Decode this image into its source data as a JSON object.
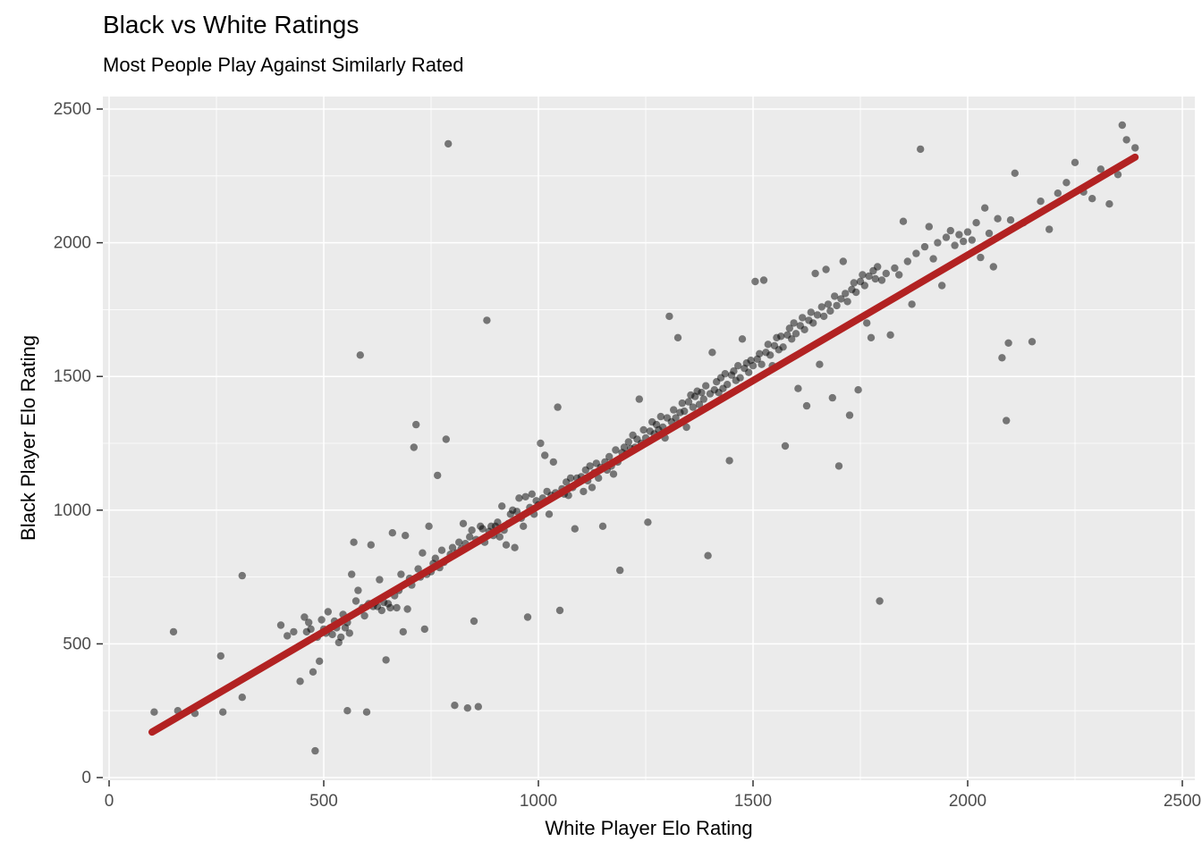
{
  "chart_data": {
    "type": "scatter",
    "title": "Black vs White Ratings",
    "subtitle": "Most People Play Against Similarly Rated",
    "xlabel": "White Player Elo Rating",
    "ylabel": "Black Player Elo Rating",
    "xlim": [
      0,
      2500
    ],
    "ylim": [
      0,
      2500
    ],
    "x_ticks": [
      0,
      500,
      1000,
      1500,
      2000,
      2500
    ],
    "y_ticks": [
      0,
      500,
      1000,
      1500,
      2000,
      2500
    ],
    "minor_gridlines": [
      250,
      750,
      1250,
      1750,
      2250
    ],
    "grid": true,
    "legend_position": "none",
    "style": {
      "panel_bg": "#EBEBEB",
      "grid_color": "#FFFFFF",
      "tick_label_color": "#4D4D4D",
      "axis_tick_color": "#333333",
      "point_color": "#000000",
      "point_opacity": 0.5,
      "point_radius": 4.2,
      "trend_color": "#B22222",
      "trend_width": 8
    },
    "trend_line": {
      "type": "linear_fit",
      "x1": 100,
      "y1": 170,
      "x2": 2390,
      "y2": 2320
    },
    "points": [
      [
        105,
        245
      ],
      [
        160,
        250
      ],
      [
        200,
        240
      ],
      [
        265,
        245
      ],
      [
        150,
        545
      ],
      [
        260,
        455
      ],
      [
        310,
        300
      ],
      [
        310,
        755
      ],
      [
        400,
        570
      ],
      [
        415,
        530
      ],
      [
        430,
        545
      ],
      [
        445,
        360
      ],
      [
        455,
        600
      ],
      [
        460,
        545
      ],
      [
        465,
        580
      ],
      [
        470,
        555
      ],
      [
        475,
        395
      ],
      [
        480,
        100
      ],
      [
        485,
        525
      ],
      [
        490,
        435
      ],
      [
        495,
        590
      ],
      [
        500,
        555
      ],
      [
        505,
        540
      ],
      [
        510,
        620
      ],
      [
        515,
        560
      ],
      [
        520,
        535
      ],
      [
        525,
        585
      ],
      [
        530,
        560
      ],
      [
        535,
        505
      ],
      [
        540,
        525
      ],
      [
        545,
        610
      ],
      [
        550,
        560
      ],
      [
        555,
        580
      ],
      [
        555,
        250
      ],
      [
        560,
        540
      ],
      [
        565,
        760
      ],
      [
        570,
        880
      ],
      [
        575,
        660
      ],
      [
        580,
        700
      ],
      [
        585,
        1580
      ],
      [
        590,
        635
      ],
      [
        595,
        605
      ],
      [
        600,
        640
      ],
      [
        600,
        245
      ],
      [
        605,
        650
      ],
      [
        610,
        870
      ],
      [
        615,
        640
      ],
      [
        620,
        655
      ],
      [
        625,
        640
      ],
      [
        630,
        740
      ],
      [
        635,
        625
      ],
      [
        640,
        655
      ],
      [
        645,
        440
      ],
      [
        650,
        650
      ],
      [
        655,
        635
      ],
      [
        660,
        915
      ],
      [
        665,
        680
      ],
      [
        670,
        635
      ],
      [
        675,
        700
      ],
      [
        680,
        760
      ],
      [
        685,
        545
      ],
      [
        690,
        905
      ],
      [
        695,
        630
      ],
      [
        700,
        745
      ],
      [
        705,
        720
      ],
      [
        710,
        1235
      ],
      [
        715,
        1320
      ],
      [
        720,
        780
      ],
      [
        725,
        750
      ],
      [
        730,
        840
      ],
      [
        735,
        555
      ],
      [
        740,
        760
      ],
      [
        745,
        940
      ],
      [
        750,
        770
      ],
      [
        755,
        800
      ],
      [
        760,
        820
      ],
      [
        765,
        1130
      ],
      [
        770,
        785
      ],
      [
        775,
        850
      ],
      [
        780,
        805
      ],
      [
        785,
        1265
      ],
      [
        790,
        2370
      ],
      [
        795,
        835
      ],
      [
        800,
        860
      ],
      [
        805,
        270
      ],
      [
        810,
        840
      ],
      [
        815,
        880
      ],
      [
        820,
        855
      ],
      [
        825,
        950
      ],
      [
        830,
        875
      ],
      [
        835,
        260
      ],
      [
        840,
        900
      ],
      [
        845,
        925
      ],
      [
        850,
        585
      ],
      [
        855,
        890
      ],
      [
        860,
        265
      ],
      [
        865,
        940
      ],
      [
        870,
        930
      ],
      [
        875,
        880
      ],
      [
        880,
        1710
      ],
      [
        885,
        920
      ],
      [
        890,
        940
      ],
      [
        895,
        905
      ],
      [
        900,
        940
      ],
      [
        905,
        955
      ],
      [
        910,
        900
      ],
      [
        915,
        1015
      ],
      [
        920,
        925
      ],
      [
        925,
        870
      ],
      [
        930,
        950
      ],
      [
        935,
        985
      ],
      [
        940,
        1000
      ],
      [
        945,
        860
      ],
      [
        950,
        995
      ],
      [
        955,
        1045
      ],
      [
        960,
        970
      ],
      [
        965,
        940
      ],
      [
        970,
        1050
      ],
      [
        975,
        600
      ],
      [
        980,
        1010
      ],
      [
        985,
        1060
      ],
      [
        990,
        985
      ],
      [
        995,
        1035
      ],
      [
        1000,
        1020
      ],
      [
        1005,
        1250
      ],
      [
        1010,
        1045
      ],
      [
        1015,
        1205
      ],
      [
        1020,
        1070
      ],
      [
        1025,
        985
      ],
      [
        1030,
        1055
      ],
      [
        1035,
        1180
      ],
      [
        1040,
        1065
      ],
      [
        1045,
        1385
      ],
      [
        1050,
        625
      ],
      [
        1055,
        1080
      ],
      [
        1060,
        1060
      ],
      [
        1065,
        1105
      ],
      [
        1070,
        1055
      ],
      [
        1075,
        1120
      ],
      [
        1080,
        1085
      ],
      [
        1085,
        930
      ],
      [
        1090,
        1120
      ],
      [
        1095,
        1105
      ],
      [
        1100,
        1125
      ],
      [
        1105,
        1070
      ],
      [
        1110,
        1150
      ],
      [
        1115,
        1110
      ],
      [
        1120,
        1165
      ],
      [
        1125,
        1085
      ],
      [
        1130,
        1140
      ],
      [
        1135,
        1175
      ],
      [
        1140,
        1120
      ],
      [
        1145,
        1160
      ],
      [
        1150,
        940
      ],
      [
        1155,
        1180
      ],
      [
        1160,
        1150
      ],
      [
        1165,
        1200
      ],
      [
        1170,
        1165
      ],
      [
        1175,
        1135
      ],
      [
        1180,
        1225
      ],
      [
        1185,
        1180
      ],
      [
        1190,
        775
      ],
      [
        1195,
        1215
      ],
      [
        1200,
        1235
      ],
      [
        1205,
        1210
      ],
      [
        1210,
        1255
      ],
      [
        1215,
        1230
      ],
      [
        1220,
        1280
      ],
      [
        1225,
        1235
      ],
      [
        1230,
        1265
      ],
      [
        1235,
        1415
      ],
      [
        1240,
        1250
      ],
      [
        1245,
        1300
      ],
      [
        1250,
        1270
      ],
      [
        1255,
        955
      ],
      [
        1260,
        1295
      ],
      [
        1265,
        1330
      ],
      [
        1270,
        1285
      ],
      [
        1275,
        1320
      ],
      [
        1280,
        1300
      ],
      [
        1285,
        1350
      ],
      [
        1290,
        1310
      ],
      [
        1295,
        1270
      ],
      [
        1300,
        1345
      ],
      [
        1305,
        1725
      ],
      [
        1310,
        1330
      ],
      [
        1315,
        1375
      ],
      [
        1320,
        1345
      ],
      [
        1325,
        1645
      ],
      [
        1330,
        1365
      ],
      [
        1335,
        1400
      ],
      [
        1340,
        1370
      ],
      [
        1345,
        1310
      ],
      [
        1350,
        1405
      ],
      [
        1355,
        1430
      ],
      [
        1360,
        1385
      ],
      [
        1365,
        1425
      ],
      [
        1370,
        1445
      ],
      [
        1375,
        1395
      ],
      [
        1380,
        1440
      ],
      [
        1385,
        1415
      ],
      [
        1390,
        1465
      ],
      [
        1395,
        830
      ],
      [
        1400,
        1435
      ],
      [
        1405,
        1590
      ],
      [
        1410,
        1450
      ],
      [
        1415,
        1480
      ],
      [
        1420,
        1440
      ],
      [
        1425,
        1495
      ],
      [
        1430,
        1455
      ],
      [
        1435,
        1510
      ],
      [
        1440,
        1470
      ],
      [
        1445,
        1185
      ],
      [
        1450,
        1505
      ],
      [
        1455,
        1520
      ],
      [
        1460,
        1485
      ],
      [
        1465,
        1540
      ],
      [
        1470,
        1495
      ],
      [
        1475,
        1640
      ],
      [
        1480,
        1530
      ],
      [
        1485,
        1550
      ],
      [
        1490,
        1515
      ],
      [
        1495,
        1560
      ],
      [
        1500,
        1540
      ],
      [
        1505,
        1855
      ],
      [
        1510,
        1565
      ],
      [
        1515,
        1585
      ],
      [
        1520,
        1545
      ],
      [
        1525,
        1860
      ],
      [
        1530,
        1590
      ],
      [
        1535,
        1620
      ],
      [
        1540,
        1580
      ],
      [
        1545,
        1540
      ],
      [
        1550,
        1615
      ],
      [
        1555,
        1645
      ],
      [
        1560,
        1600
      ],
      [
        1565,
        1650
      ],
      [
        1570,
        1610
      ],
      [
        1575,
        1240
      ],
      [
        1580,
        1655
      ],
      [
        1585,
        1680
      ],
      [
        1590,
        1640
      ],
      [
        1595,
        1700
      ],
      [
        1600,
        1660
      ],
      [
        1605,
        1455
      ],
      [
        1610,
        1690
      ],
      [
        1615,
        1720
      ],
      [
        1620,
        1675
      ],
      [
        1625,
        1390
      ],
      [
        1630,
        1710
      ],
      [
        1635,
        1740
      ],
      [
        1640,
        1700
      ],
      [
        1645,
        1885
      ],
      [
        1650,
        1730
      ],
      [
        1655,
        1545
      ],
      [
        1660,
        1760
      ],
      [
        1665,
        1725
      ],
      [
        1670,
        1900
      ],
      [
        1675,
        1770
      ],
      [
        1680,
        1745
      ],
      [
        1685,
        1420
      ],
      [
        1690,
        1800
      ],
      [
        1695,
        1765
      ],
      [
        1700,
        1165
      ],
      [
        1705,
        1790
      ],
      [
        1710,
        1930
      ],
      [
        1715,
        1810
      ],
      [
        1720,
        1780
      ],
      [
        1725,
        1355
      ],
      [
        1730,
        1825
      ],
      [
        1735,
        1850
      ],
      [
        1740,
        1815
      ],
      [
        1745,
        1450
      ],
      [
        1750,
        1855
      ],
      [
        1755,
        1880
      ],
      [
        1760,
        1840
      ],
      [
        1765,
        1700
      ],
      [
        1770,
        1875
      ],
      [
        1775,
        1645
      ],
      [
        1780,
        1895
      ],
      [
        1785,
        1865
      ],
      [
        1790,
        1910
      ],
      [
        1795,
        660
      ],
      [
        1800,
        1860
      ],
      [
        1810,
        1885
      ],
      [
        1820,
        1655
      ],
      [
        1830,
        1905
      ],
      [
        1840,
        1880
      ],
      [
        1850,
        2080
      ],
      [
        1860,
        1930
      ],
      [
        1870,
        1770
      ],
      [
        1880,
        1960
      ],
      [
        1890,
        2350
      ],
      [
        1900,
        1985
      ],
      [
        1910,
        2060
      ],
      [
        1920,
        1940
      ],
      [
        1930,
        2000
      ],
      [
        1940,
        1840
      ],
      [
        1950,
        2020
      ],
      [
        1960,
        2045
      ],
      [
        1970,
        1990
      ],
      [
        1980,
        2030
      ],
      [
        1990,
        2005
      ],
      [
        2000,
        2040
      ],
      [
        2010,
        2010
      ],
      [
        2020,
        2075
      ],
      [
        2030,
        1945
      ],
      [
        2040,
        2130
      ],
      [
        2050,
        2035
      ],
      [
        2060,
        1910
      ],
      [
        2070,
        2090
      ],
      [
        2080,
        1570
      ],
      [
        2090,
        1335
      ],
      [
        2095,
        1625
      ],
      [
        2100,
        2085
      ],
      [
        2110,
        2260
      ],
      [
        2130,
        2075
      ],
      [
        2150,
        1630
      ],
      [
        2170,
        2155
      ],
      [
        2190,
        2050
      ],
      [
        2210,
        2185
      ],
      [
        2230,
        2225
      ],
      [
        2250,
        2300
      ],
      [
        2270,
        2190
      ],
      [
        2290,
        2165
      ],
      [
        2310,
        2275
      ],
      [
        2330,
        2145
      ],
      [
        2350,
        2255
      ],
      [
        2360,
        2440
      ],
      [
        2370,
        2385
      ],
      [
        2390,
        2355
      ]
    ]
  }
}
